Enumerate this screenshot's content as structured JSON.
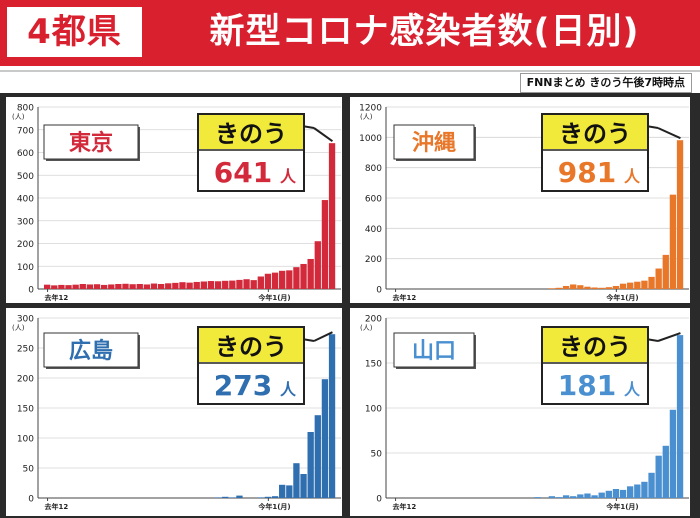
{
  "header": {
    "region_badge": "4都県",
    "title": "新型コロナ感染者数(日別)",
    "source_note": "FNNまとめ きのう午後7時時点"
  },
  "colors": {
    "banner": "#d8202f",
    "tokyo": "#d22a3b",
    "okinawa": "#e8772a",
    "hiroshima": "#2f6fb0",
    "yamaguchi": "#4a8fd0",
    "callout_bg": "#f2ea3a"
  },
  "chart_data": [
    {
      "type": "bar",
      "region": "東京",
      "callout_label": "きのう",
      "callout_value": "641",
      "callout_unit": "人",
      "unit_label": "(人)",
      "x_tick_start": "去年12",
      "x_tick_mid": "今年1(月)",
      "ylim": [
        0,
        800
      ],
      "yticks": [
        0,
        100,
        200,
        300,
        400,
        500,
        600,
        700,
        800
      ],
      "values": [
        19,
        16,
        18,
        17,
        19,
        22,
        20,
        21,
        18,
        20,
        22,
        23,
        21,
        22,
        20,
        24,
        22,
        25,
        27,
        30,
        28,
        31,
        33,
        35,
        34,
        36,
        37,
        40,
        43,
        39,
        55,
        67,
        72,
        80,
        82,
        96,
        110,
        132,
        210,
        391,
        641
      ]
    },
    {
      "type": "bar",
      "region": "沖縄",
      "callout_label": "きのう",
      "callout_value": "981",
      "callout_unit": "人",
      "unit_label": "(人)",
      "x_tick_start": "去年12",
      "x_tick_mid": "今年1(月)",
      "ylim": [
        0,
        1200
      ],
      "yticks": [
        0,
        200,
        400,
        600,
        800,
        1000,
        1200
      ],
      "values": [
        0,
        0,
        0,
        0,
        0,
        0,
        0,
        0,
        0,
        0,
        0,
        0,
        0,
        0,
        0,
        0,
        0,
        0,
        0,
        0,
        0,
        0,
        5,
        8,
        20,
        30,
        25,
        15,
        10,
        8,
        12,
        20,
        35,
        42,
        48,
        55,
        80,
        135,
        225,
        622,
        981
      ]
    },
    {
      "type": "bar",
      "region": "広島",
      "callout_label": "きのう",
      "callout_value": "273",
      "callout_unit": "人",
      "unit_label": "(人)",
      "x_tick_start": "去年12",
      "x_tick_mid": "今年1(月)",
      "ylim": [
        0,
        300
      ],
      "yticks": [
        0,
        50,
        100,
        150,
        200,
        250,
        300
      ],
      "values": [
        0,
        0,
        0,
        0,
        0,
        0,
        0,
        0,
        0,
        0,
        0,
        0,
        0,
        0,
        0,
        0,
        0,
        0,
        0,
        0,
        0,
        0,
        0,
        0,
        1,
        2,
        1,
        4,
        0,
        0,
        1,
        2,
        3,
        22,
        21,
        58,
        40,
        110,
        138,
        198,
        273
      ]
    },
    {
      "type": "bar",
      "region": "山口",
      "callout_label": "きのう",
      "callout_value": "181",
      "callout_unit": "人",
      "unit_label": "(人)",
      "x_tick_start": "去年12",
      "x_tick_mid": "今年1(月)",
      "ylim": [
        0,
        200
      ],
      "yticks": [
        0,
        50,
        100,
        150,
        200
      ],
      "values": [
        0,
        0,
        0,
        0,
        0,
        0,
        0,
        0,
        0,
        0,
        0,
        0,
        0,
        0,
        0,
        0,
        0,
        0,
        0,
        0,
        1,
        0,
        2,
        1,
        3,
        2,
        4,
        5,
        3,
        6,
        8,
        10,
        9,
        13,
        15,
        18,
        28,
        47,
        58,
        98,
        181
      ]
    }
  ]
}
